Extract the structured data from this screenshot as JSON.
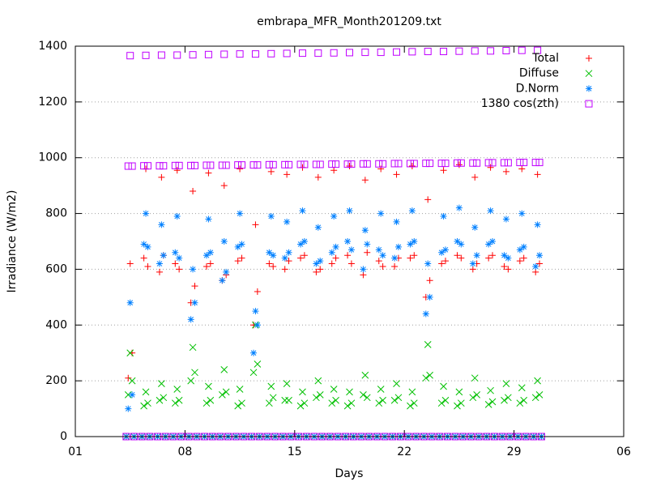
{
  "chart_data": {
    "type": "scatter",
    "title": "embrapa_MFR_Month201209.txt",
    "x_label": "Days",
    "y_label": "Irradiance (W/m2)",
    "xlim": [
      1,
      36
    ],
    "xticks": [
      {
        "value": 1,
        "label": "01"
      },
      {
        "value": 8,
        "label": "08"
      },
      15,
      22,
      29,
      {
        "value": 36,
        "label": "06"
      }
    ],
    "ylim": [
      0,
      1400
    ],
    "yticks": [
      0,
      200,
      400,
      600,
      800,
      1000,
      1200,
      1400
    ],
    "grid": true,
    "legend": "top-right",
    "x": [
      4.25,
      4.375,
      4.5,
      4.625,
      4.75,
      5.25,
      5.375,
      5.5,
      5.625,
      5.75,
      6.25,
      6.375,
      6.5,
      6.625,
      6.75,
      7.25,
      7.375,
      7.5,
      7.625,
      7.75,
      8.25,
      8.375,
      8.5,
      8.625,
      8.75,
      9.25,
      9.375,
      9.5,
      9.625,
      9.75,
      10.25,
      10.375,
      10.5,
      10.625,
      10.75,
      11.25,
      11.375,
      11.5,
      11.625,
      11.75,
      12.25,
      12.375,
      12.5,
      12.625,
      12.75,
      13.25,
      13.375,
      13.5,
      13.625,
      13.75,
      14.25,
      14.375,
      14.5,
      14.625,
      14.75,
      15.25,
      15.375,
      15.5,
      15.625,
      15.75,
      16.25,
      16.375,
      16.5,
      16.625,
      16.75,
      17.25,
      17.375,
      17.5,
      17.625,
      17.75,
      18.25,
      18.375,
      18.5,
      18.625,
      18.75,
      19.25,
      19.375,
      19.5,
      19.625,
      19.75,
      20.25,
      20.375,
      20.5,
      20.625,
      20.75,
      21.25,
      21.375,
      21.5,
      21.625,
      21.75,
      22.25,
      22.375,
      22.5,
      22.625,
      22.75,
      23.25,
      23.375,
      23.5,
      23.625,
      23.75,
      24.25,
      24.375,
      24.5,
      24.625,
      24.75,
      25.25,
      25.375,
      25.5,
      25.625,
      25.75,
      26.25,
      26.375,
      26.5,
      26.625,
      26.75,
      27.25,
      27.375,
      27.5,
      27.625,
      27.75,
      28.25,
      28.375,
      28.5,
      28.625,
      28.75,
      29.25,
      29.375,
      29.5,
      29.625,
      29.75,
      30.25,
      30.375,
      30.5,
      30.625,
      30.75
    ],
    "series": [
      {
        "name": "Total",
        "color": "#ff0000",
        "values": [
          0,
          210,
          620,
          300,
          0,
          0,
          640,
          960,
          610,
          0,
          0,
          590,
          930,
          650,
          0,
          0,
          620,
          955,
          600,
          0,
          0,
          480,
          880,
          540,
          0,
          0,
          610,
          945,
          620,
          0,
          0,
          560,
          900,
          580,
          0,
          0,
          630,
          960,
          640,
          0,
          0,
          400,
          760,
          520,
          0,
          0,
          620,
          950,
          610,
          0,
          0,
          600,
          940,
          630,
          0,
          0,
          640,
          965,
          650,
          0,
          0,
          590,
          930,
          600,
          0,
          0,
          620,
          955,
          640,
          0,
          0,
          650,
          970,
          620,
          0,
          0,
          580,
          920,
          660,
          0,
          0,
          630,
          960,
          610,
          0,
          0,
          610,
          940,
          640,
          0,
          0,
          640,
          970,
          650,
          0,
          0,
          500,
          850,
          560,
          0,
          0,
          620,
          955,
          630,
          0,
          0,
          650,
          975,
          640,
          0,
          0,
          600,
          930,
          620,
          0,
          0,
          640,
          965,
          650,
          0,
          0,
          610,
          950,
          600,
          0,
          0,
          630,
          960,
          640,
          0,
          0,
          590,
          940,
          620,
          0
        ]
      },
      {
        "name": "Diffuse",
        "color": "#00c000",
        "values": [
          0,
          150,
          300,
          200,
          0,
          0,
          110,
          160,
          120,
          0,
          0,
          130,
          190,
          140,
          0,
          0,
          120,
          170,
          130,
          0,
          0,
          200,
          320,
          230,
          0,
          0,
          120,
          180,
          130,
          0,
          0,
          150,
          240,
          160,
          0,
          0,
          110,
          170,
          120,
          0,
          0,
          230,
          400,
          260,
          0,
          0,
          120,
          180,
          140,
          0,
          0,
          130,
          190,
          130,
          0,
          0,
          110,
          160,
          120,
          0,
          0,
          140,
          200,
          150,
          0,
          0,
          120,
          170,
          130,
          0,
          0,
          110,
          160,
          120,
          0,
          0,
          150,
          220,
          140,
          0,
          0,
          120,
          170,
          130,
          0,
          0,
          130,
          190,
          140,
          0,
          0,
          110,
          160,
          120,
          0,
          0,
          210,
          330,
          220,
          0,
          0,
          120,
          180,
          130,
          0,
          0,
          110,
          160,
          120,
          0,
          0,
          140,
          210,
          150,
          0,
          0,
          115,
          165,
          125,
          0,
          0,
          130,
          190,
          140,
          0,
          0,
          120,
          175,
          130,
          0,
          0,
          140,
          200,
          150,
          0
        ]
      },
      {
        "name": "D.Norm",
        "color": "#0080ff",
        "values": [
          0,
          100,
          480,
          150,
          0,
          0,
          690,
          800,
          680,
          0,
          0,
          620,
          760,
          650,
          0,
          0,
          660,
          790,
          640,
          0,
          0,
          420,
          600,
          480,
          0,
          0,
          650,
          780,
          660,
          0,
          0,
          560,
          700,
          590,
          0,
          0,
          680,
          800,
          690,
          0,
          0,
          300,
          450,
          400,
          0,
          0,
          660,
          790,
          650,
          0,
          0,
          640,
          770,
          660,
          0,
          0,
          690,
          810,
          700,
          0,
          0,
          620,
          750,
          630,
          0,
          0,
          660,
          790,
          680,
          0,
          0,
          700,
          810,
          670,
          0,
          0,
          600,
          740,
          690,
          0,
          0,
          670,
          800,
          650,
          0,
          0,
          640,
          770,
          680,
          0,
          0,
          690,
          810,
          700,
          0,
          0,
          440,
          620,
          500,
          0,
          0,
          660,
          790,
          670,
          0,
          0,
          700,
          820,
          690,
          0,
          0,
          620,
          750,
          650,
          0,
          0,
          690,
          810,
          700,
          0,
          0,
          650,
          780,
          640,
          0,
          0,
          670,
          800,
          680,
          0,
          0,
          610,
          760,
          650,
          0
        ]
      },
      {
        "name": "1380 cos(zth)",
        "color": "#c000ff",
        "values": [
          0,
          970,
          1366,
          970,
          0,
          0,
          971,
          1367,
          971,
          0,
          0,
          971,
          1368,
          971,
          0,
          0,
          972,
          1368,
          972,
          0,
          0,
          972,
          1369,
          972,
          0,
          0,
          973,
          1370,
          973,
          0,
          0,
          973,
          1371,
          973,
          0,
          0,
          974,
          1372,
          974,
          0,
          0,
          974,
          1372,
          974,
          0,
          0,
          975,
          1373,
          975,
          0,
          0,
          975,
          1374,
          975,
          0,
          0,
          976,
          1375,
          976,
          0,
          0,
          976,
          1375,
          976,
          0,
          0,
          977,
          1376,
          977,
          0,
          0,
          977,
          1377,
          977,
          0,
          0,
          978,
          1378,
          978,
          0,
          0,
          978,
          1378,
          978,
          0,
          0,
          979,
          1379,
          979,
          0,
          0,
          979,
          1380,
          979,
          0,
          0,
          980,
          1381,
          980,
          0,
          0,
          980,
          1381,
          980,
          0,
          0,
          981,
          1382,
          981,
          0,
          0,
          981,
          1383,
          981,
          0,
          0,
          982,
          1383,
          982,
          0,
          0,
          982,
          1384,
          982,
          0,
          0,
          983,
          1385,
          983,
          0,
          0,
          983,
          1385,
          983,
          0
        ]
      }
    ]
  }
}
